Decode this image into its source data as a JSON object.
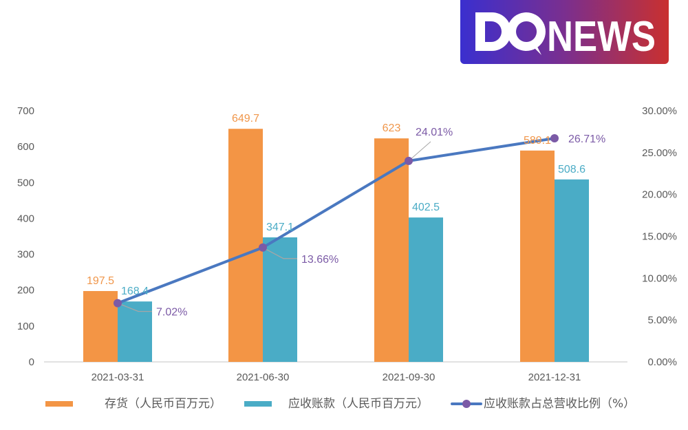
{
  "logo": {
    "text": "DQNEWS",
    "gradient": [
      "#3a2fcf",
      "#c9302f"
    ]
  },
  "chart_data": {
    "type": "bar+line",
    "categories": [
      "2021-03-31",
      "2021-06-30",
      "2021-09-30",
      "2021-12-31"
    ],
    "series": [
      {
        "name": "存货（人民币百万元）",
        "type": "bar",
        "axis": "left",
        "color": "#f39545",
        "values": [
          197.5,
          649.7,
          623,
          589.1
        ],
        "labels": [
          "197.5",
          "649.7",
          "623",
          "589.1"
        ]
      },
      {
        "name": "应收账款（人民币百万元）",
        "type": "bar",
        "axis": "left",
        "color": "#4aacc6",
        "values": [
          168.4,
          347.1,
          402.5,
          508.6
        ],
        "labels": [
          "168.4",
          "347.1",
          "402.5",
          "508.6"
        ]
      },
      {
        "name": "应收账款占总营收比例（%）",
        "type": "line",
        "axis": "right",
        "color": "#4a78c0",
        "marker_color": "#7b5aa6",
        "values": [
          7.02,
          13.66,
          24.01,
          26.71
        ],
        "labels": [
          "7.02%",
          "13.66%",
          "24.01%",
          "26.71%"
        ]
      }
    ],
    "y_left": {
      "range": [
        0,
        700
      ],
      "ticks": [
        "0",
        "100",
        "200",
        "300",
        "400",
        "500",
        "600",
        "700"
      ],
      "tick_values": [
        0,
        100,
        200,
        300,
        400,
        500,
        600,
        700
      ]
    },
    "y_right": {
      "range": [
        0,
        30
      ],
      "ticks": [
        "0.00%",
        "5.00%",
        "10.00%",
        "15.00%",
        "20.00%",
        "25.00%",
        "30.00%"
      ],
      "tick_values": [
        0,
        5,
        10,
        15,
        20,
        25,
        30
      ]
    },
    "grid": false,
    "legend_position": "bottom",
    "legend": [
      "存货（人民币百万元）",
      "应收账款（人民币百万元）",
      "应收账款占总营收比例（%）"
    ]
  }
}
